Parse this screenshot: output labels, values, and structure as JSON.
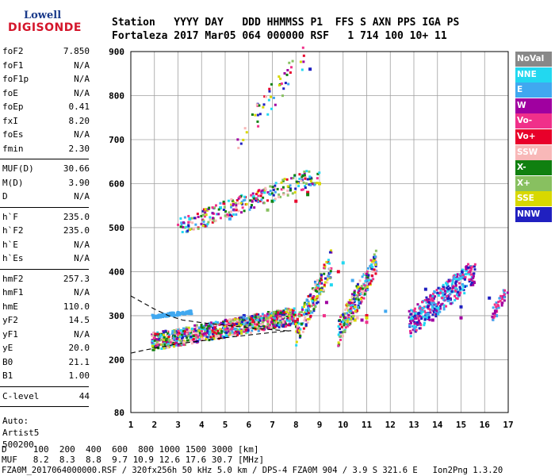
{
  "logo": {
    "top": "Lowell",
    "bottom": "DIGISONDE"
  },
  "header": {
    "line1": "Station   YYYY DAY   DDD HHMMSS P1  FFS S AXN PPS IGA PS",
    "line2": "Fortaleza 2017 Mar05 064 000000 RSF   1 714 100 10+ 11"
  },
  "params": {
    "group1": [
      {
        "label": "foF2",
        "value": "7.850"
      },
      {
        "label": "foF1",
        "value": "N/A"
      },
      {
        "label": "foF1p",
        "value": "N/A"
      },
      {
        "label": "foE",
        "value": "N/A"
      },
      {
        "label": "foEp",
        "value": "0.41"
      },
      {
        "label": "fxI",
        "value": "8.20"
      },
      {
        "label": "foEs",
        "value": "N/A"
      },
      {
        "label": "fmin",
        "value": "2.30"
      }
    ],
    "group2": [
      {
        "label": "MUF(D)",
        "value": "30.66"
      },
      {
        "label": "M(D)",
        "value": "3.90"
      },
      {
        "label": "D",
        "value": "N/A"
      }
    ],
    "group3": [
      {
        "label": "h`F",
        "value": "235.0"
      },
      {
        "label": "h`F2",
        "value": "235.0"
      },
      {
        "label": "h`E",
        "value": "N/A"
      },
      {
        "label": "h`Es",
        "value": "N/A"
      }
    ],
    "group4": [
      {
        "label": "hmF2",
        "value": "257.3"
      },
      {
        "label": "hmF1",
        "value": "N/A"
      },
      {
        "label": "hmE",
        "value": "110.0"
      },
      {
        "label": "yF2",
        "value": "14.5"
      },
      {
        "label": "yF1",
        "value": "N/A"
      },
      {
        "label": "yE",
        "value": "20.0"
      },
      {
        "label": "B0",
        "value": "21.1"
      },
      {
        "label": "B1",
        "value": "1.00"
      }
    ],
    "group5": [
      {
        "label": "C-level",
        "value": "44"
      }
    ],
    "auto": [
      "Auto:",
      "Artist5",
      "500200"
    ]
  },
  "legend": [
    {
      "label": "NoVal",
      "color": "#888888"
    },
    {
      "label": "NNE",
      "color": "#22d8f0"
    },
    {
      "label": "E",
      "color": "#40a8f0"
    },
    {
      "label": "W",
      "color": "#a000a0"
    },
    {
      "label": "Vo-",
      "color": "#f0308a"
    },
    {
      "label": "Vo+",
      "color": "#e8002a"
    },
    {
      "label": "SSW",
      "color": "#f8b8b8"
    },
    {
      "label": "X-",
      "color": "#108010"
    },
    {
      "label": "X+",
      "color": "#88c060"
    },
    {
      "label": "SSE",
      "color": "#d8d800"
    },
    {
      "label": "NNW",
      "color": "#2020c0"
    }
  ],
  "footer": {
    "d_line": "D     100  200  400  600  800 1000 1500 3000 [km]",
    "muf_line": "MUF   8.2  8.3  8.8  9.7 10.9 12.6 17.6 30.7 [MHz]",
    "file_line": "FZA0M_2017064000000.RSF / 320fx256h 50 kHz 5.0 km / DPS-4 FZA0M 904 / 3.9 S 321.6 E   Ion2Png 1.3.20"
  },
  "chart_data": {
    "type": "scatter",
    "xlim": [
      1,
      17
    ],
    "ylim": [
      80,
      900
    ],
    "x_ticks": [
      1,
      2,
      3,
      4,
      5,
      6,
      7,
      8,
      9,
      10,
      11,
      12,
      13,
      14,
      15,
      16,
      17
    ],
    "y_ticks": [
      80,
      200,
      300,
      400,
      500,
      600,
      700,
      800,
      900
    ],
    "grid": true,
    "legend_placement": "right",
    "series": [
      {
        "name": "NNE",
        "points": [
          [
            3.5,
            520
          ],
          [
            4.8,
            545
          ],
          [
            6.2,
            570
          ],
          [
            9.5,
            370
          ],
          [
            10.0,
            420
          ],
          [
            11.2,
            380
          ],
          [
            13.8,
            320
          ]
        ]
      },
      {
        "name": "E",
        "points": [
          [
            2.5,
            300
          ],
          [
            3.0,
            302
          ],
          [
            3.5,
            305
          ],
          [
            4.2,
            505
          ],
          [
            5.2,
            520
          ],
          [
            10.4,
            380
          ],
          [
            11.8,
            310
          ],
          [
            13.2,
            305
          ],
          [
            16.5,
            300
          ]
        ]
      },
      {
        "name": "W",
        "points": [
          [
            2.2,
            245
          ],
          [
            3.8,
            255
          ],
          [
            5.5,
            265
          ],
          [
            7.5,
            280
          ],
          [
            9.3,
            330
          ],
          [
            10.8,
            290
          ],
          [
            13.8,
            290
          ],
          [
            15.0,
            295
          ]
        ]
      },
      {
        "name": "Vo-",
        "points": [
          [
            2.0,
            250
          ],
          [
            3.0,
            260
          ],
          [
            4.5,
            270
          ],
          [
            6.0,
            285
          ],
          [
            7.8,
            300
          ],
          [
            9.2,
            300
          ],
          [
            10.8,
            350
          ],
          [
            11.0,
            285
          ],
          [
            16.5,
            310
          ]
        ]
      },
      {
        "name": "Vo+",
        "points": [
          [
            2.5,
            240
          ],
          [
            4.0,
            250
          ],
          [
            5.5,
            262
          ],
          [
            7.2,
            278
          ],
          [
            8.0,
            560
          ],
          [
            8.5,
            580
          ],
          [
            9.8,
            400
          ],
          [
            11.0,
            300
          ]
        ]
      },
      {
        "name": "SSW",
        "points": [
          [
            6.5,
            290
          ],
          [
            7.0,
            295
          ],
          [
            10.2,
            300
          ],
          [
            10.6,
            295
          ]
        ]
      },
      {
        "name": "X-",
        "points": [
          [
            2.8,
            250
          ],
          [
            3.5,
            260
          ],
          [
            7.0,
            560
          ],
          [
            8.5,
            575
          ]
        ]
      },
      {
        "name": "X+",
        "points": [
          [
            4.5,
            520
          ],
          [
            6.8,
            540
          ],
          [
            8.8,
            600
          ]
        ]
      },
      {
        "name": "SSE",
        "points": [
          [
            6.2,
            275
          ],
          [
            7.5,
            285
          ],
          [
            9.0,
            600
          ],
          [
            10.5,
            290
          ],
          [
            11.0,
            295
          ]
        ]
      },
      {
        "name": "NNW",
        "points": [
          [
            5.8,
            300
          ],
          [
            8.6,
            860
          ],
          [
            13.5,
            360
          ],
          [
            14.5,
            380
          ],
          [
            15.0,
            320
          ],
          [
            16.2,
            340
          ]
        ]
      }
    ]
  }
}
